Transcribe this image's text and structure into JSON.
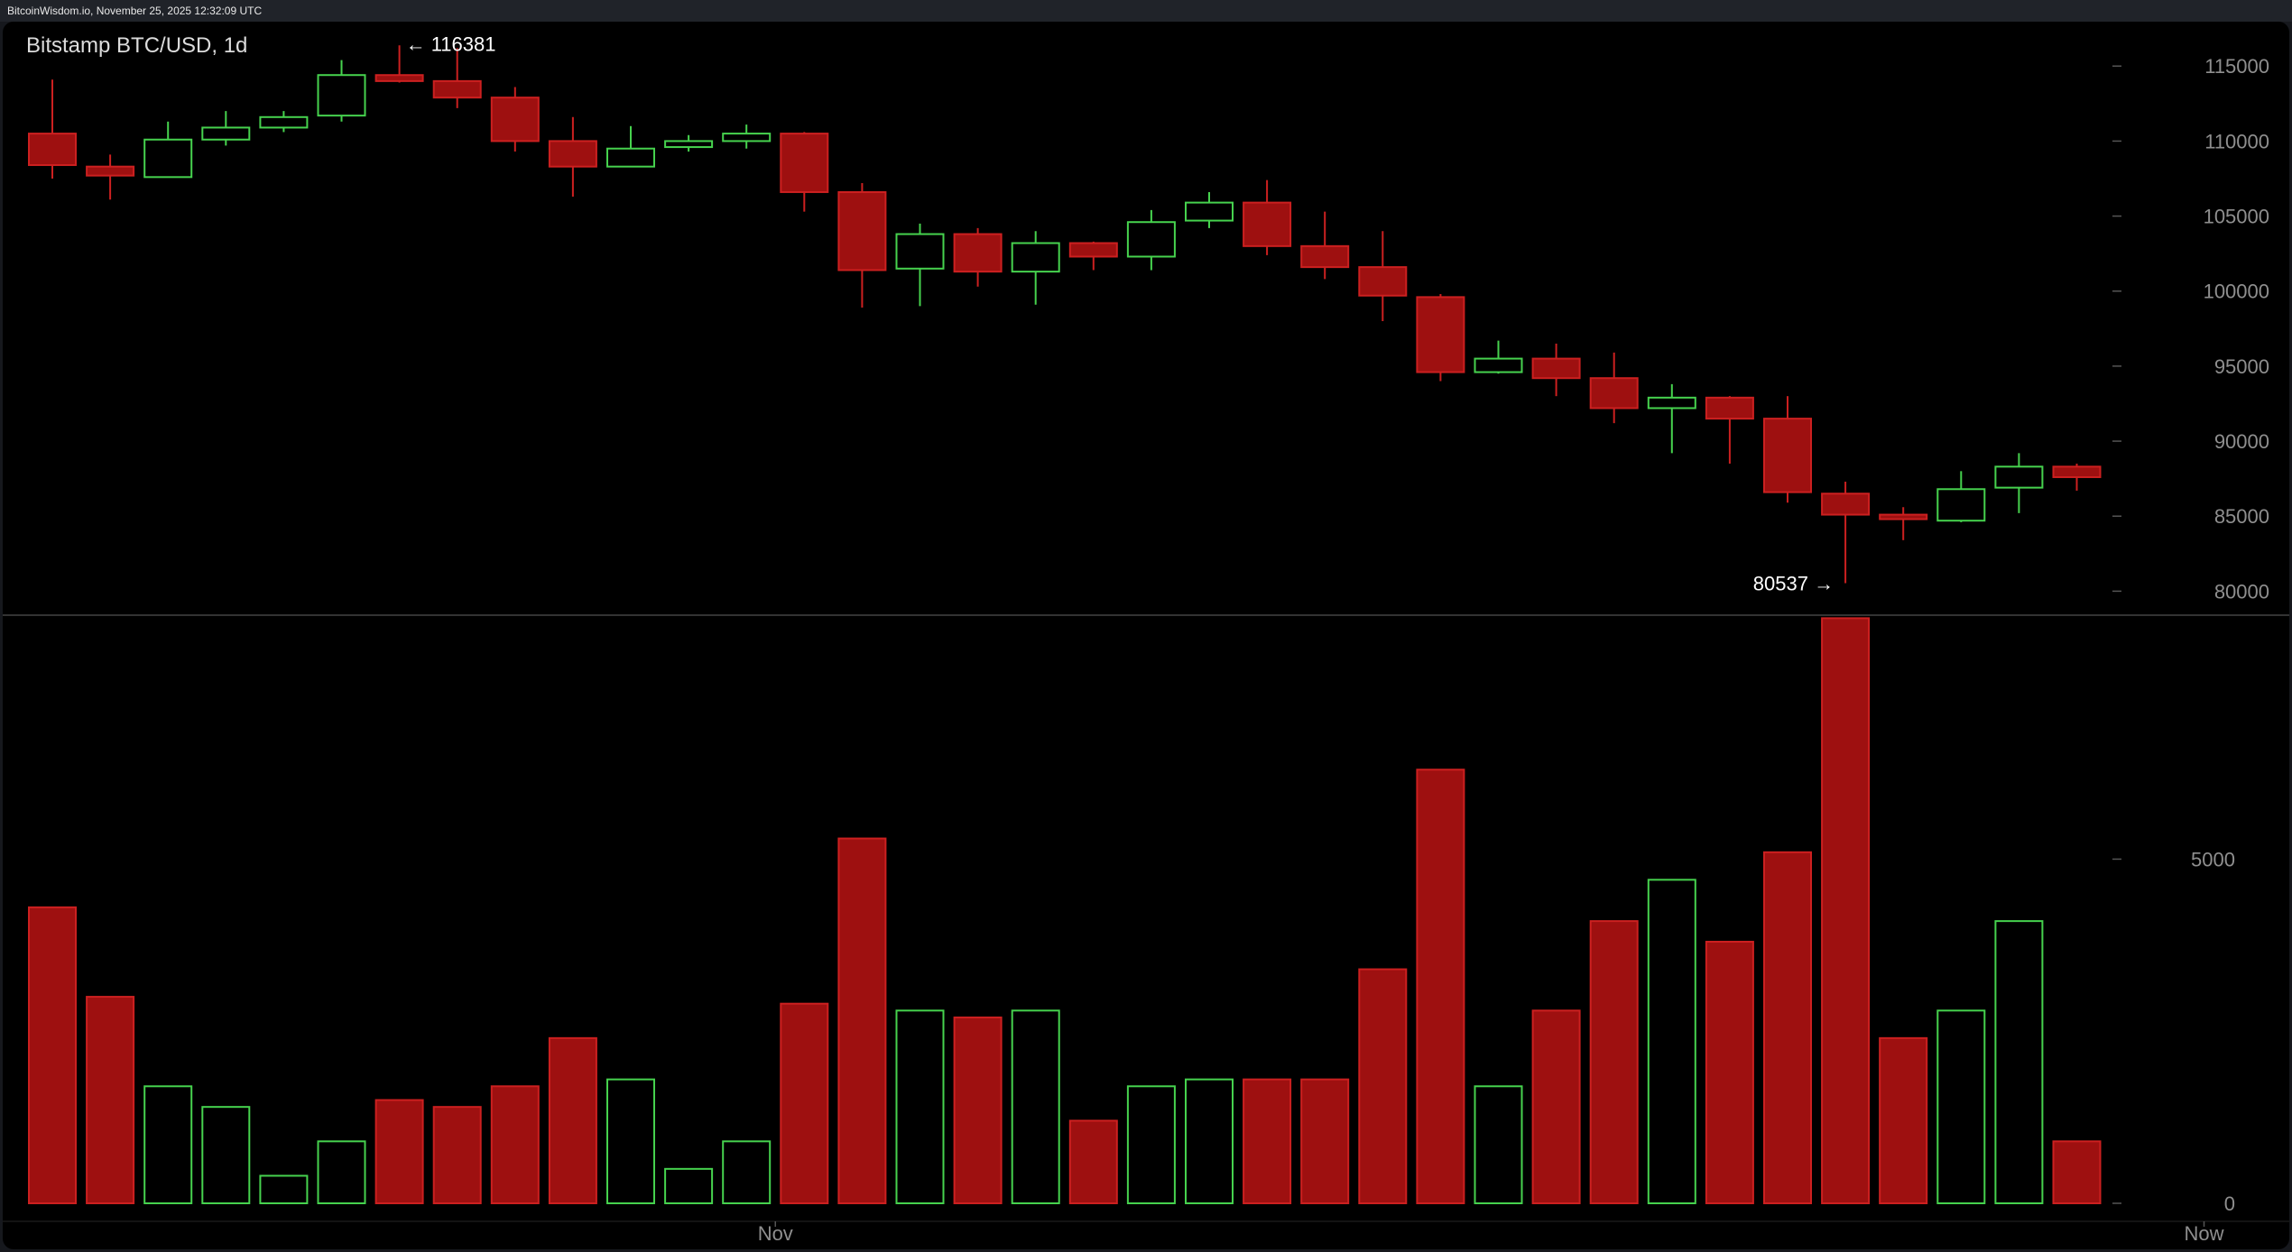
{
  "header": {
    "status_text": "BitcoinWisdom.io, November 25, 2025 12:32:09 UTC"
  },
  "chart_data": {
    "type": "candlestick",
    "title": "Bitstamp BTC/USD, 1d",
    "price_axis": {
      "ticks": [
        80000,
        85000,
        90000,
        95000,
        100000,
        105000,
        110000,
        115000
      ],
      "range": [
        78400,
        117600
      ]
    },
    "volume_axis": {
      "ticks": [
        0,
        5000
      ],
      "range": [
        0,
        8400
      ]
    },
    "x_labels": [
      {
        "text": "Nov",
        "index": 12.5
      },
      {
        "text": "Now",
        "index": 37.2
      }
    ],
    "annotations": [
      {
        "text": "← 116381",
        "index": 6,
        "value": 116381,
        "side": "right"
      },
      {
        "text": "80537 →",
        "index": 31,
        "value": 80537,
        "side": "left"
      }
    ],
    "colors": {
      "up": "#46d24e",
      "down": "#9e1010",
      "down_edge": "#cc2020",
      "axis": "#8f8f8f",
      "separator": "#444444"
    },
    "candles": [
      {
        "open": 110500,
        "high": 114100,
        "low": 107500,
        "close": 108400
      },
      {
        "open": 108300,
        "high": 109100,
        "low": 106100,
        "close": 107700
      },
      {
        "open": 107600,
        "high": 111300,
        "low": 107600,
        "close": 110100
      },
      {
        "open": 110100,
        "high": 112000,
        "low": 109700,
        "close": 110900
      },
      {
        "open": 110900,
        "high": 112000,
        "low": 110600,
        "close": 111600
      },
      {
        "open": 111700,
        "high": 115400,
        "low": 111300,
        "close": 114400
      },
      {
        "open": 114400,
        "high": 116381,
        "low": 113900,
        "close": 114000
      },
      {
        "open": 114000,
        "high": 116200,
        "low": 112200,
        "close": 112900
      },
      {
        "open": 112900,
        "high": 113600,
        "low": 109300,
        "close": 110000
      },
      {
        "open": 110000,
        "high": 111600,
        "low": 106300,
        "close": 108300
      },
      {
        "open": 108300,
        "high": 111000,
        "low": 108300,
        "close": 109500
      },
      {
        "open": 109600,
        "high": 110400,
        "low": 109300,
        "close": 110000
      },
      {
        "open": 110000,
        "high": 111100,
        "low": 109500,
        "close": 110500
      },
      {
        "open": 110500,
        "high": 110600,
        "low": 105300,
        "close": 106600
      },
      {
        "open": 106600,
        "high": 107200,
        "low": 98900,
        "close": 101400
      },
      {
        "open": 101500,
        "high": 104500,
        "low": 99000,
        "close": 103800
      },
      {
        "open": 103800,
        "high": 104200,
        "low": 100300,
        "close": 101300
      },
      {
        "open": 101300,
        "high": 104000,
        "low": 99100,
        "close": 103200
      },
      {
        "open": 103200,
        "high": 103300,
        "low": 101400,
        "close": 102300
      },
      {
        "open": 102300,
        "high": 105400,
        "low": 101400,
        "close": 104600
      },
      {
        "open": 104700,
        "high": 106600,
        "low": 104200,
        "close": 105900
      },
      {
        "open": 105900,
        "high": 107400,
        "low": 102400,
        "close": 103000
      },
      {
        "open": 103000,
        "high": 105300,
        "low": 100800,
        "close": 101600
      },
      {
        "open": 101600,
        "high": 104000,
        "low": 98000,
        "close": 99700
      },
      {
        "open": 99600,
        "high": 99800,
        "low": 94000,
        "close": 94600
      },
      {
        "open": 94600,
        "high": 96700,
        "low": 94500,
        "close": 95500
      },
      {
        "open": 95500,
        "high": 96500,
        "low": 93000,
        "close": 94200
      },
      {
        "open": 94200,
        "high": 95900,
        "low": 91200,
        "close": 92200
      },
      {
        "open": 92200,
        "high": 93800,
        "low": 89200,
        "close": 92900
      },
      {
        "open": 92900,
        "high": 93000,
        "low": 88500,
        "close": 91500
      },
      {
        "open": 91500,
        "high": 93000,
        "low": 85900,
        "close": 86600
      },
      {
        "open": 86500,
        "high": 87300,
        "low": 80537,
        "close": 85100
      },
      {
        "open": 85100,
        "high": 85600,
        "low": 83400,
        "close": 84800
      },
      {
        "open": 84700,
        "high": 88000,
        "low": 84600,
        "close": 86800
      },
      {
        "open": 86900,
        "high": 89200,
        "low": 85200,
        "close": 88300
      },
      {
        "open": 88300,
        "high": 88500,
        "low": 86700,
        "close": 87600
      }
    ],
    "volume": [
      4300,
      3000,
      1700,
      1400,
      400,
      900,
      1500,
      1400,
      1700,
      2400,
      1800,
      500,
      900,
      2900,
      5300,
      2800,
      2700,
      2800,
      1200,
      1700,
      1800,
      1800,
      1800,
      3400,
      6300,
      1700,
      2800,
      4100,
      4700,
      3800,
      5100,
      8500,
      2400,
      2800,
      4100,
      900
    ]
  }
}
